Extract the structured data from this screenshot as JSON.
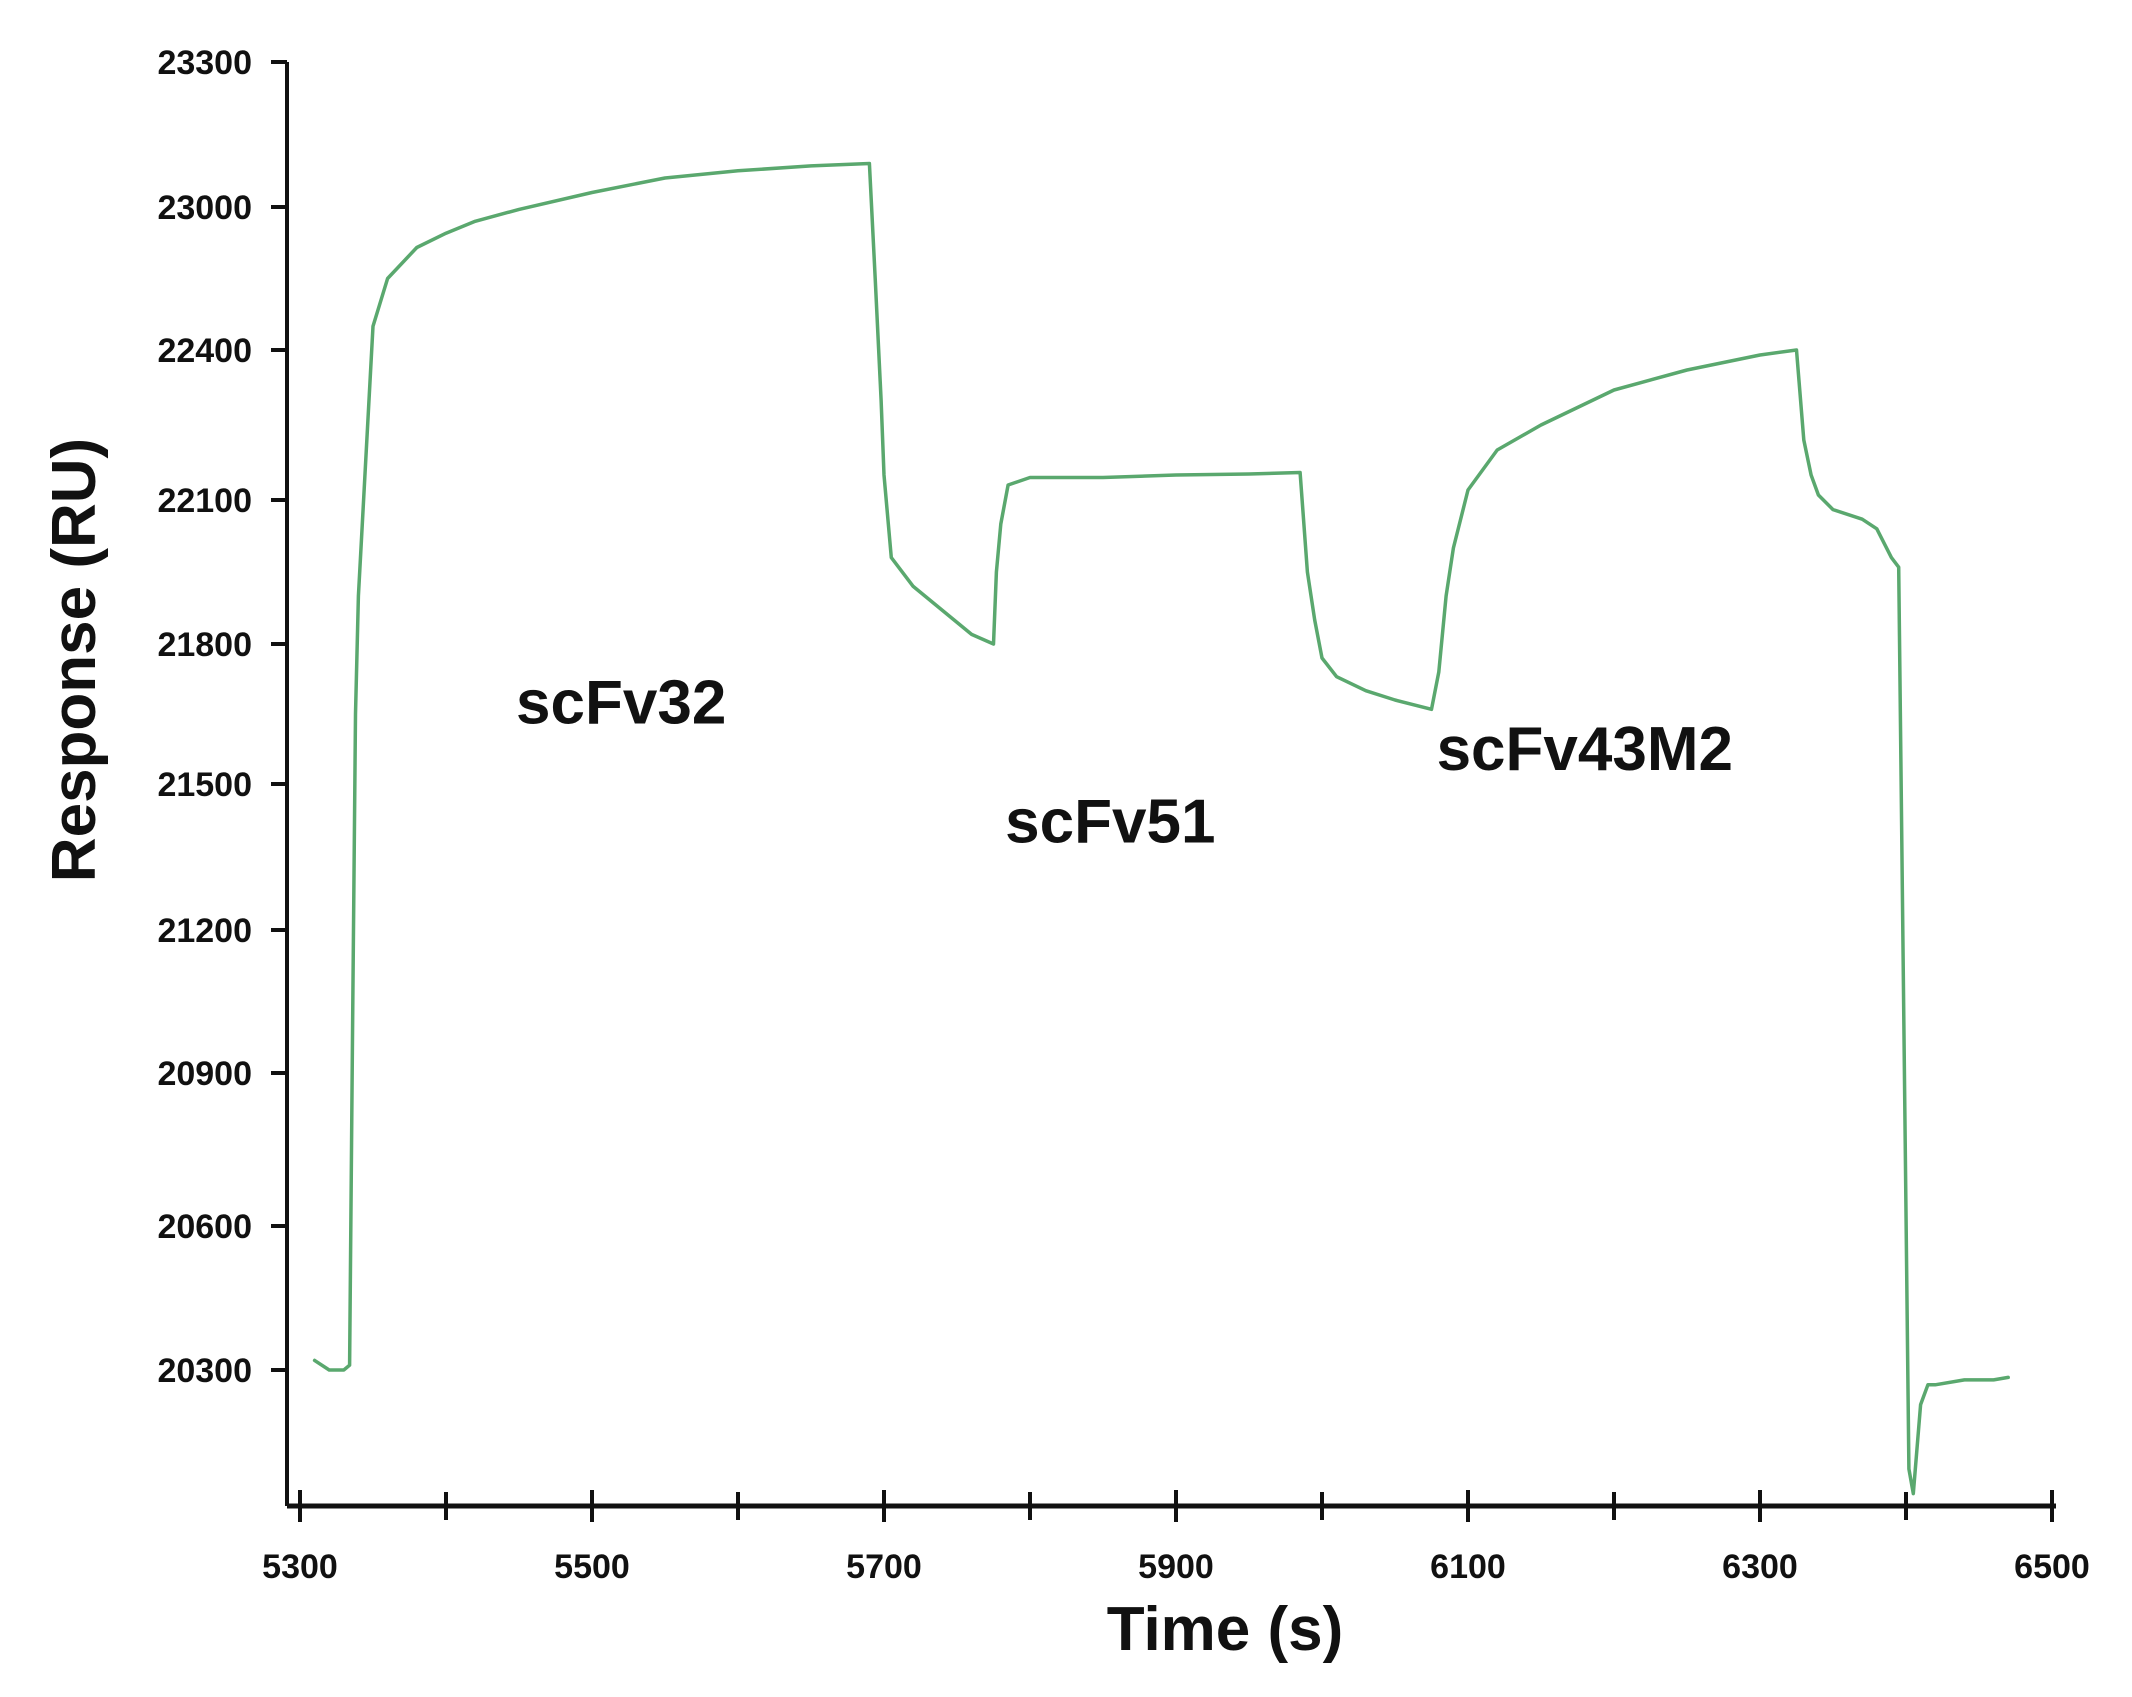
{
  "chart_data": {
    "type": "line",
    "title": "",
    "xlabel": "Time (s)",
    "ylabel": "Response (RU)",
    "xlim": [
      5300,
      6500
    ],
    "ylim": [
      20025,
      23300
    ],
    "x_ticks": [
      5300,
      5500,
      5700,
      5900,
      6100,
      6300,
      6500
    ],
    "x_minor_ticks": [
      5400,
      5600,
      5800,
      6000,
      6200,
      6400
    ],
    "y_ticks": [
      20300,
      20600,
      20900,
      21200,
      21500,
      21800,
      22100,
      22400,
      23000,
      23300
    ],
    "grid": false,
    "legend": "none",
    "line_color": "#5aa86e",
    "annotations": [
      {
        "text": "scFv32",
        "x": 5520,
        "y": 21630
      },
      {
        "text": "scFv51",
        "x": 5855,
        "y": 21380
      },
      {
        "text": "scFv43M2",
        "x": 6180,
        "y": 21530
      }
    ],
    "series": [
      {
        "x": [
          5310,
          5320,
          5330,
          5334,
          5336,
          5338,
          5340,
          5350,
          5360,
          5380,
          5400,
          5420,
          5450,
          5500,
          5550,
          5600,
          5650,
          5690,
          5694,
          5698,
          5700,
          5705,
          5720,
          5740,
          5760,
          5775,
          5777,
          5780,
          5785,
          5800,
          5850,
          5900,
          5950,
          5985,
          5990,
          5995,
          6000,
          6010,
          6030,
          6050,
          6075,
          6080,
          6085,
          6090,
          6100,
          6120,
          6150,
          6200,
          6250,
          6300,
          6325,
          6330,
          6335,
          6340,
          6350,
          6370,
          6380,
          6385,
          6390,
          6395,
          6402,
          6405,
          6410,
          6415,
          6420,
          6440,
          6460,
          6470
        ],
        "y": [
          20320,
          20300,
          20300,
          20310,
          21000,
          21650,
          21900,
          22500,
          22700,
          22830,
          22890,
          22940,
          22990,
          23030,
          23060,
          23075,
          23085,
          23090,
          22700,
          22300,
          22150,
          21980,
          21920,
          21870,
          21820,
          21800,
          21950,
          22050,
          22130,
          22145,
          22145,
          22150,
          22152,
          22155,
          21950,
          21850,
          21770,
          21730,
          21700,
          21680,
          21660,
          21740,
          21900,
          22000,
          22120,
          22200,
          22250,
          22320,
          22360,
          22390,
          22400,
          22220,
          22150,
          22110,
          22080,
          22060,
          22040,
          22010,
          21980,
          21960,
          20100,
          20050,
          20230,
          20270,
          20270,
          20280,
          20280,
          20285
        ]
      }
    ]
  }
}
